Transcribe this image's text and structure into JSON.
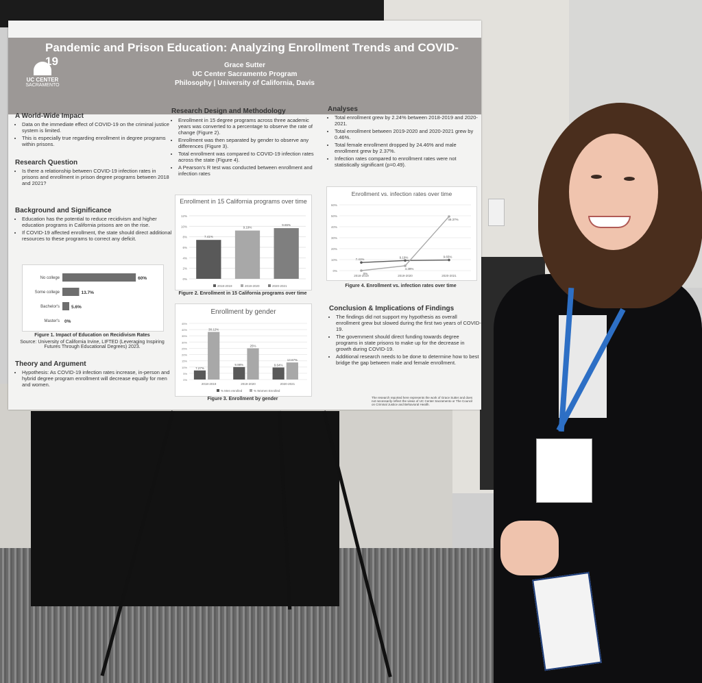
{
  "poster": {
    "title": "Pandemic and Prison Education: Analyzing Enrollment Trends and COVID-19",
    "author": "Grace Sutter",
    "program": "UC Center Sacramento Program",
    "department": "Philosophy | University of California, Davis",
    "logo": {
      "line1": "UC CENTER",
      "line2": "SACRAMENTO"
    },
    "sections": {
      "world": {
        "heading": "A World-Wide Impact",
        "bullets": [
          "Data on the immediate effect of COVID-19 on the criminal justice system is limited.",
          "This is especially true regarding enrollment in degree programs within prisons."
        ]
      },
      "question": {
        "heading": "Research Question",
        "bullets": [
          "Is there a relationship between COVID-19 infection rates in prisons and enrollment in prison degree programs between 2018 and 2021?"
        ]
      },
      "background": {
        "heading": "Background and Significance",
        "bullets": [
          "Education has the potential to reduce recidivism and higher education programs in California prisons are on the rise.",
          "If COVID-19 affected enrollment, the state should direct additional resources to these programs to correct any deficit."
        ]
      },
      "theory": {
        "heading": "Theory and Argument",
        "bullets": [
          "Hypothesis: As COVID-19 infection rates increase, in-person and hybrid degree program enrollment will decrease equally for men and women."
        ]
      },
      "design": {
        "heading": "Research Design and Methodology",
        "bullets": [
          "Enrollment in 15 degree programs across three academic years was converted to a percentage to observe the rate of change (Figure 2).",
          "Enrollment was then separated by gender to observe any differences (Figure 3).",
          "Total enrollment was compared to COVID-19 infection rates across the state (Figure 4).",
          "A Pearson's R test was conducted between enrollment and infection rates"
        ]
      },
      "analyses": {
        "heading": "Analyses",
        "bullets": [
          "Total enrollment grew by 2.24% between 2018-2019 and 2020-2021.",
          "Total enrollment between 2019-2020 and 2020-2021 grew by 0.46%.",
          "Total female enrollment dropped by 24.46% and male enrollment grew by 2.37%.",
          "Infection rates compared to enrollment rates were not statistically significant (p=0.49)."
        ]
      },
      "conclusion": {
        "heading": "Conclusion & Implications of Findings",
        "bullets": [
          "The findings did not support my hypothesis as overall enrollment grew but slowed during the first two years of COVID-19.",
          "The government should direct funding towards degree programs in state prisons to make up for the decrease in growth during COVID-19.",
          "Additional research needs to be done to determine how to best bridge the gap between male and female enrollment."
        ]
      }
    },
    "figure1_caption": "Figure 1. Impact of Education on Recidivism Rates",
    "figure1_source": "Source: University of California Irvine, LIFTED (Leveraging Inspiring Futures Through Educational Degrees) 2023.",
    "figure2_caption": "Figure 2. Enrollment in 15 California programs over time",
    "figure3_caption": "Figure 3. Enrollment by gender",
    "figure4_caption": "Figure 4. Enrollment vs. infection rates over time",
    "footnote": "The research reported here represents the work of Grace Sutter and does not necessarily reflect the views of UC Center Sacramento or The Council on Criminal Justice and Behavioral Health."
  },
  "chart_data": [
    {
      "type": "bar",
      "orientation": "horizontal",
      "categories": [
        "No college",
        "Some college",
        "Bachelor's",
        "Master's"
      ],
      "values": [
        60,
        13.7,
        5.6,
        0
      ],
      "data_labels": [
        "60%",
        "13.7%",
        "5.6%",
        "0%"
      ],
      "title": "",
      "xlim": [
        0,
        70
      ]
    },
    {
      "type": "bar",
      "title": "Enrollment in 15 California programs over time",
      "categories": [
        "2018-2019",
        "2019-2020",
        "2020-2021"
      ],
      "values": [
        7.41,
        9.19,
        9.65
      ],
      "data_labels": [
        "7.41%",
        "9.19%",
        "9.65%"
      ],
      "ylim": [
        0,
        12
      ],
      "yticks": [
        "0%",
        "2%",
        "4%",
        "6%",
        "8%",
        "10%",
        "12%"
      ],
      "legend": [
        "2018-2019",
        "2019-2020",
        "2020-2021"
      ],
      "colors": [
        "#595959",
        "#a8a8a8",
        "#7f7f7f"
      ]
    },
    {
      "type": "bar",
      "title": "Enrollment by gender",
      "categories": [
        "2018-2019",
        "2019-2020",
        "2020-2021"
      ],
      "series": [
        {
          "name": "% Men enrolled",
          "values": [
            7.27,
            9.98,
            9.64
          ],
          "labels": [
            "7.27%",
            "9.98%",
            "9.64%"
          ],
          "color": "#595959"
        },
        {
          "name": "% Women Enrolled",
          "values": [
            38.12,
            25,
            13.67
          ],
          "labels": [
            "38.12%",
            "25%",
            "13.67%"
          ],
          "color": "#a8a8a8"
        }
      ],
      "ylim": [
        0,
        45
      ],
      "yticks": [
        "0%",
        "5%",
        "10%",
        "15%",
        "20%",
        "25%",
        "30%",
        "35%",
        "40%",
        "45%"
      ]
    },
    {
      "type": "line",
      "title": "Enrollment vs. infection rates over time",
      "categories": [
        "2018-2019",
        "2019-2020",
        "2020-2021"
      ],
      "series": [
        {
          "values": [
            7.41,
            9.19,
            9.65
          ],
          "labels": [
            "7.41%",
            "9.19%",
            "9.65%"
          ],
          "color": "#595959"
        },
        {
          "values": [
            0,
            4.39,
            49.37
          ],
          "labels": [
            "0%",
            "4.39%",
            "49.37%"
          ],
          "color": "#a8a8a8"
        }
      ],
      "ylim": [
        0,
        60
      ],
      "yticks": [
        "0%",
        "10%",
        "20%",
        "30%",
        "40%",
        "50%",
        "60%"
      ]
    }
  ]
}
